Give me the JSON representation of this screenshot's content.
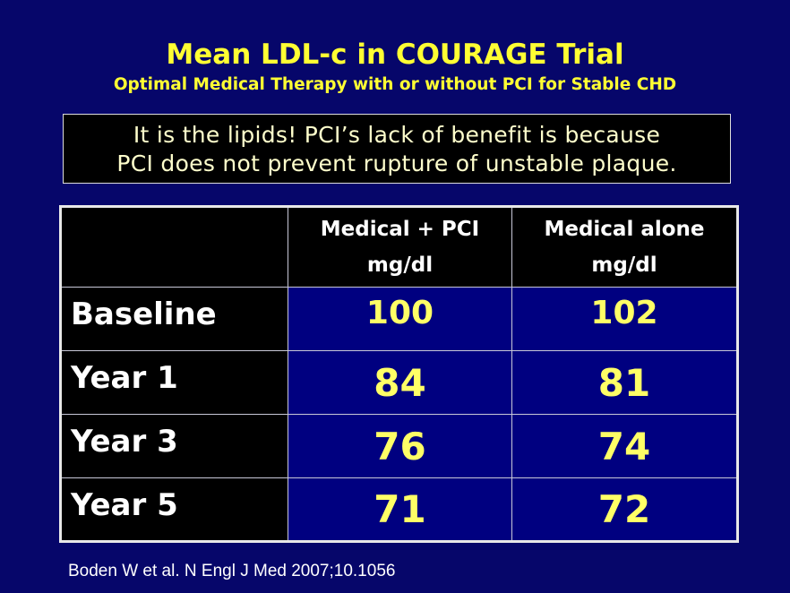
{
  "slide": {
    "title": "Mean LDL-c in COURAGE Trial",
    "subtitle": "Optimal Medical Therapy with or without PCI for Stable CHD",
    "callout": [
      "It is the lipids! PCI’s lack of benefit is because",
      "PCI does not prevent rupture of unstable plaque."
    ],
    "table": {
      "headers": [
        {
          "line1": "",
          "line2": ""
        },
        {
          "line1": "Medical + PCI",
          "line2": "mg/dl"
        },
        {
          "line1": "Medical alone",
          "line2": "mg/dl"
        }
      ],
      "rows": [
        {
          "label": "Baseline",
          "pci": "100",
          "alone": "102"
        },
        {
          "label": "Year 1",
          "pci": "84",
          "alone": "81"
        },
        {
          "label": "Year 3",
          "pci": "76",
          "alone": "74"
        },
        {
          "label": "Year 5",
          "pci": "71",
          "alone": "72"
        }
      ]
    },
    "citation": "Boden W et al. N Engl J Med 2007;10.1056"
  },
  "colors": {
    "background": "#06066a",
    "title": "#ffff33",
    "values": "#ffff66",
    "cell": "#000080"
  }
}
